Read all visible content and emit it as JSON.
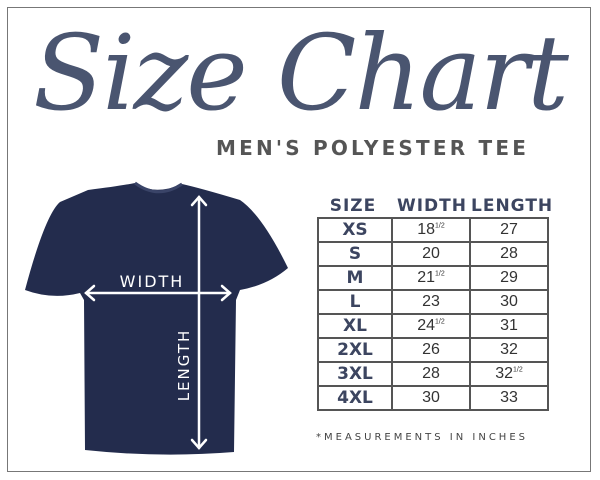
{
  "title": "Size Chart",
  "subtitle": "MEN'S POLYESTER TEE",
  "colors": {
    "title": "#4a5570",
    "shirt": "#232c4d",
    "border": "#555555"
  },
  "shirt": {
    "width_label": "WIDTH",
    "length_label": "LENGTH"
  },
  "table": {
    "headers": [
      "SIZE",
      "WIDTH",
      "LENGTH"
    ],
    "rows": [
      {
        "size": "XS",
        "width": "18",
        "width_frac": "1/2",
        "length": "27",
        "length_frac": ""
      },
      {
        "size": "S",
        "width": "20",
        "width_frac": "",
        "length": "28",
        "length_frac": ""
      },
      {
        "size": "M",
        "width": "21",
        "width_frac": "1/2",
        "length": "29",
        "length_frac": ""
      },
      {
        "size": "L",
        "width": "23",
        "width_frac": "",
        "length": "30",
        "length_frac": ""
      },
      {
        "size": "XL",
        "width": "24",
        "width_frac": "1/2",
        "length": "31",
        "length_frac": ""
      },
      {
        "size": "2XL",
        "width": "26",
        "width_frac": "",
        "length": "32",
        "length_frac": ""
      },
      {
        "size": "3XL",
        "width": "28",
        "width_frac": "",
        "length": "32",
        "length_frac": "1/2"
      },
      {
        "size": "4XL",
        "width": "30",
        "width_frac": "",
        "length": "33",
        "length_frac": ""
      }
    ]
  },
  "note": "*MEASUREMENTS IN INCHES"
}
